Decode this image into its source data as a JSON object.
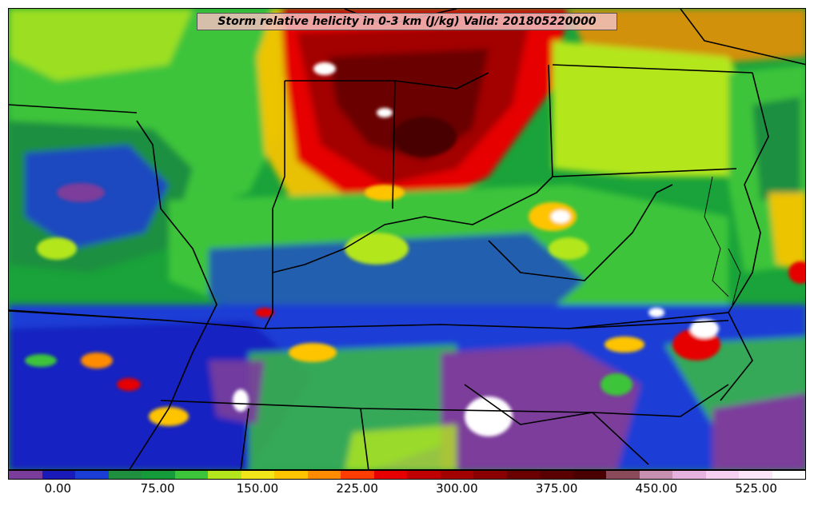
{
  "title": "Storm relative helicity in 0-3 km (J/kg) Valid: 201805220000",
  "map": {
    "variable": "Storm relative helicity in 0-3 km",
    "units": "J/kg",
    "valid": "201805220000",
    "region": "Ohio Valley / Mid-Atlantic / Southeast US",
    "features": [
      "state-boundaries",
      "coastline",
      "filled-contours"
    ]
  },
  "colorbar": {
    "colors": [
      "#7b3d9b",
      "#1a1ab8",
      "#1a3dd6",
      "#1f8f3f",
      "#169b3b",
      "#3cc43a",
      "#b4e61e",
      "#f0e619",
      "#ffc400",
      "#ff8c00",
      "#ff3d00",
      "#e60000",
      "#c00000",
      "#a30000",
      "#8a0000",
      "#6b0000",
      "#5a0000",
      "#4a0000",
      "#8b4a5a",
      "#c78fb0",
      "#e6b3e0",
      "#f5d0f0",
      "#fae6f8",
      "#ffffff"
    ],
    "tick_labels": [
      {
        "label": "0.00",
        "value": 0
      },
      {
        "label": "75.00",
        "value": 75
      },
      {
        "label": "150.00",
        "value": 150
      },
      {
        "label": "225.00",
        "value": 225
      },
      {
        "label": "300.00",
        "value": 300
      },
      {
        "label": "375.00",
        "value": 375
      },
      {
        "label": "450.00",
        "value": 450
      },
      {
        "label": "525.00",
        "value": 525
      }
    ],
    "min": -37.5,
    "max": 562.5
  }
}
